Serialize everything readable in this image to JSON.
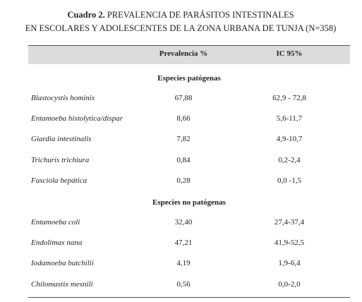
{
  "title": {
    "label": "Cuadro 2.",
    "line1": "PREVALENCIA DE PARÁSITOS INTESTINALES",
    "line2": "EN ESCOLARES Y ADOLESCENTES DE LA ZONA URBANA DE TUNJA (N=358)"
  },
  "table": {
    "header": [
      "Prevalencia %",
      "IC 95%"
    ],
    "sections": [
      {
        "title": "Especies patógenas",
        "rows": [
          [
            "Blastocystis hominis",
            "67,88",
            "62,9 - 72,8"
          ],
          [
            "Entamoeba histolytica/dispar",
            "8,66",
            "5,6-11,7"
          ],
          [
            "Giardia intestinalis",
            "7,82",
            "4,9-10,7"
          ],
          [
            "Trichuris trichiura",
            "0,84",
            "0,2-2,4"
          ],
          [
            "Fasciola hepática",
            "0,28",
            "0,0 -1,5"
          ]
        ]
      },
      {
        "title": "Especies no patógenas",
        "rows": [
          [
            "Entamoeba coli",
            "32,40",
            "27,4-37,4"
          ],
          [
            "Endolimax nana",
            "47,21",
            "41,9-52,5"
          ],
          [
            "Iodamoeba butchilii",
            "4,19",
            "1,9-6,4"
          ],
          [
            "Chilomastix mesnili",
            "0,56",
            "0,0-2,0"
          ]
        ]
      }
    ]
  }
}
